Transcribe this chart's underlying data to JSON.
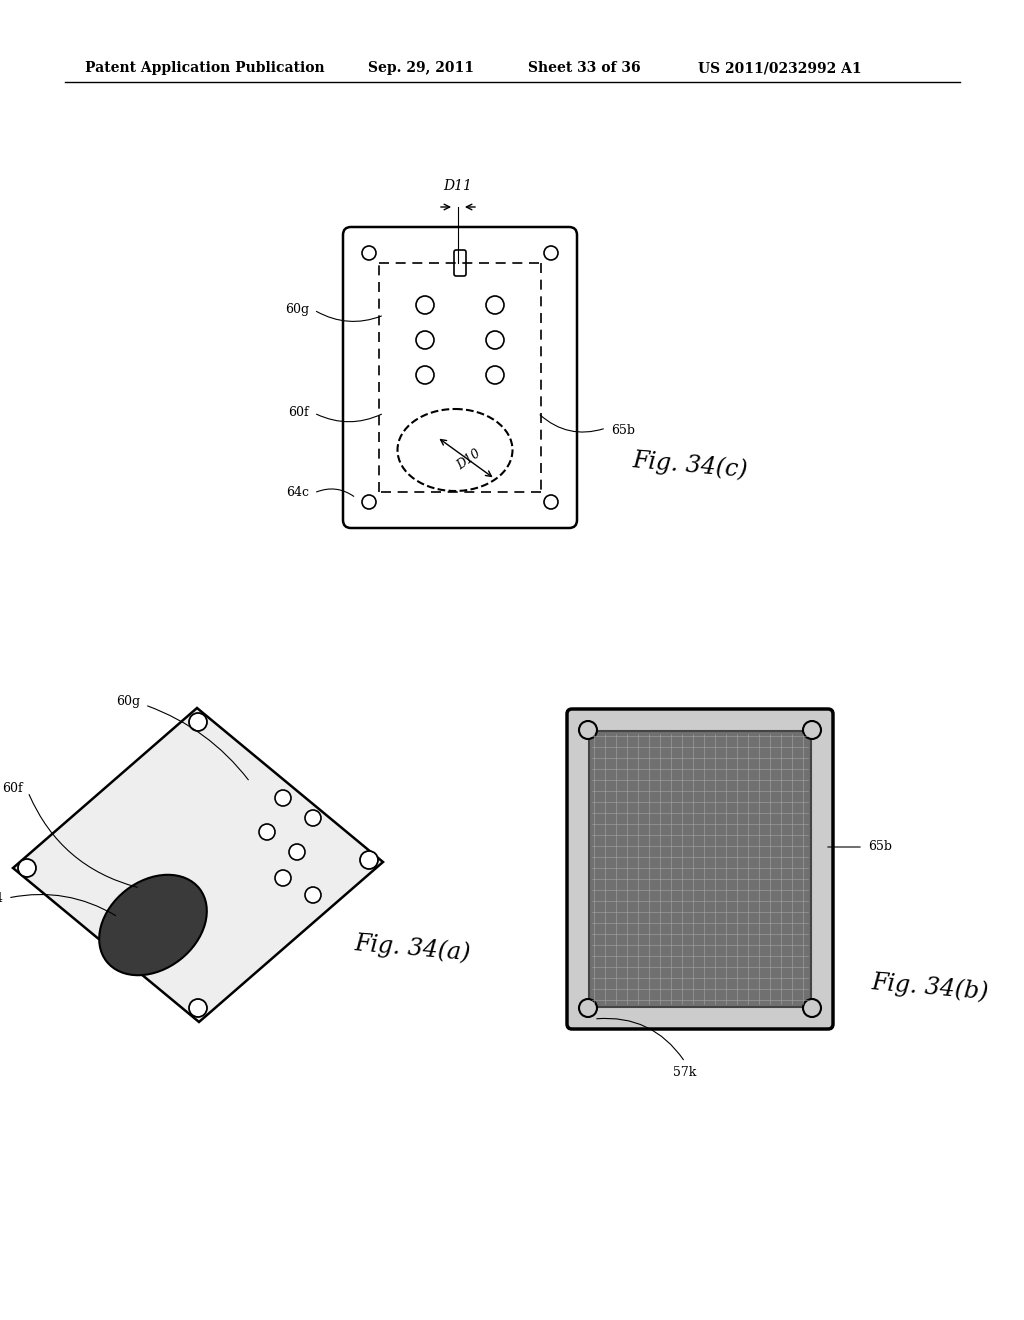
{
  "bg_color": "#ffffff",
  "header_text": "Patent Application Publication",
  "header_date": "Sep. 29, 2011",
  "header_sheet": "Sheet 33 of 36",
  "header_patent": "US 2011/0232992 A1",
  "fig_c_label": "Fig. 34(c)",
  "fig_a_label": "Fig. 34(a)",
  "fig_b_label": "Fig. 34(b)"
}
